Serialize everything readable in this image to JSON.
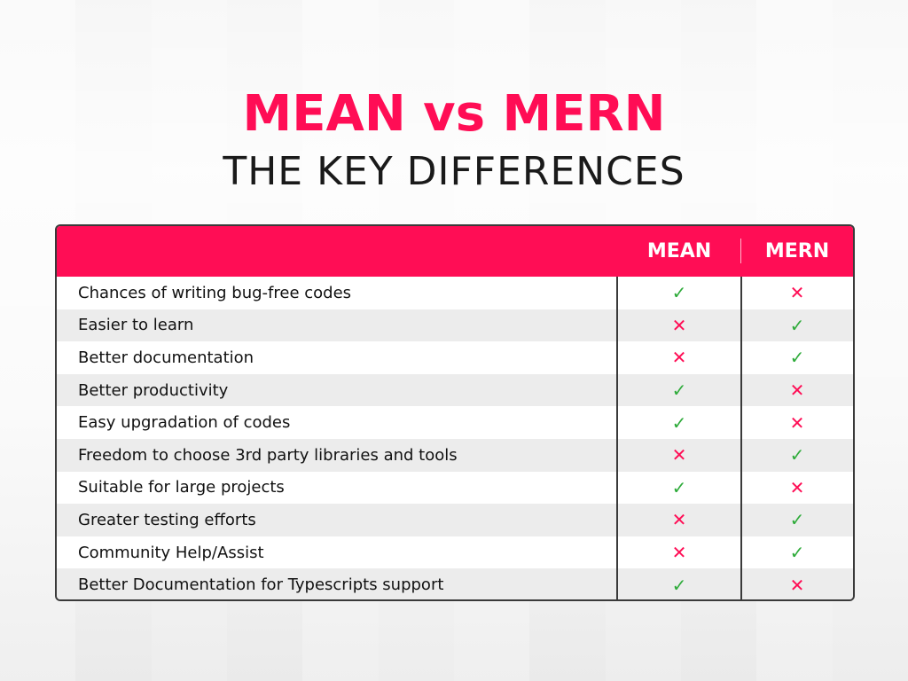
{
  "title": "MEAN vs MERN",
  "subtitle": "THE KEY DIFFERENCES",
  "colors": {
    "accent": "#ff0d55",
    "check": "#2eab3a",
    "cross": "#ff0d55"
  },
  "table": {
    "columns": [
      "",
      "MEAN",
      "MERN"
    ],
    "rows": [
      {
        "label": "Chances of writing bug-free codes",
        "mean": "check",
        "mern": "cross"
      },
      {
        "label": "Easier to learn",
        "mean": "cross",
        "mern": "check"
      },
      {
        "label": "Better documentation",
        "mean": "cross",
        "mern": "check"
      },
      {
        "label": "Better productivity",
        "mean": "check",
        "mern": "cross"
      },
      {
        "label": "Easy upgradation of codes",
        "mean": "check",
        "mern": "cross"
      },
      {
        "label": "Freedom to choose 3rd party libraries and tools",
        "mean": "cross",
        "mern": "check"
      },
      {
        "label": "Suitable for large projects",
        "mean": "check",
        "mern": "cross"
      },
      {
        "label": "Greater testing efforts",
        "mean": "cross",
        "mern": "check"
      },
      {
        "label": "Community Help/Assist",
        "mean": "cross",
        "mern": "check"
      },
      {
        "label": "Better Documentation for Typescripts support",
        "mean": "check",
        "mern": "cross"
      }
    ]
  }
}
